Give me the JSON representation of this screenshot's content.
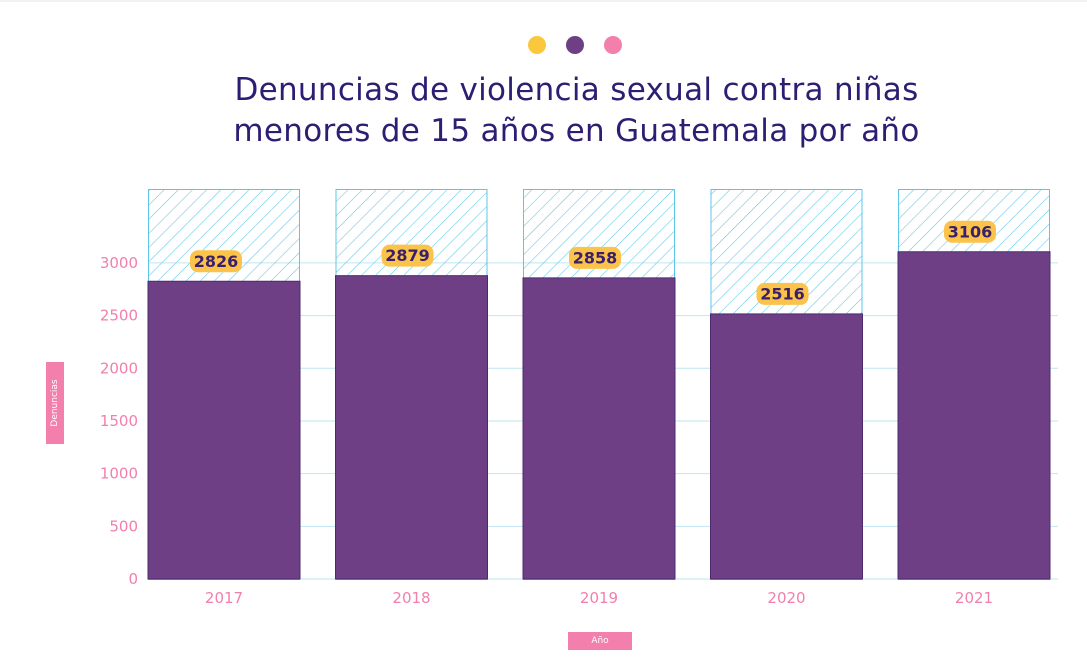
{
  "colors": {
    "bar": "#6e3f85",
    "bar_edge": "#4b2b6e",
    "hatch": "#5cc6e8",
    "label_bg": "#fbc34a",
    "label_text": "#3a1f6b",
    "axis_text": "#f27fac",
    "grid": "#bfe6f2",
    "title": "#2e1e73",
    "dot_yellow": "#fbc83d",
    "dot_purple": "#6e3f85",
    "dot_pink": "#f27fac"
  },
  "header": {
    "title_line1": "Denuncias de violencia sexual contra niñas",
    "title_line2": "menores de 15 años en Guatemala por año"
  },
  "chart_data": {
    "type": "bar",
    "title": "Denuncias de violencia sexual contra niñas menores de 15 años en Guatemala por año",
    "categories": [
      "2017",
      "2018",
      "2019",
      "2020",
      "2021"
    ],
    "values": [
      2826,
      2879,
      2858,
      2516,
      3106
    ],
    "xlabel": "Año",
    "ylabel": "Denuncias",
    "ylim": [
      0,
      3700
    ],
    "yticks": [
      0,
      500,
      1000,
      1500,
      2000,
      2500,
      3000
    ],
    "grid": true,
    "data_labels": [
      "2826",
      "2879",
      "2858",
      "2516",
      "3106"
    ]
  }
}
